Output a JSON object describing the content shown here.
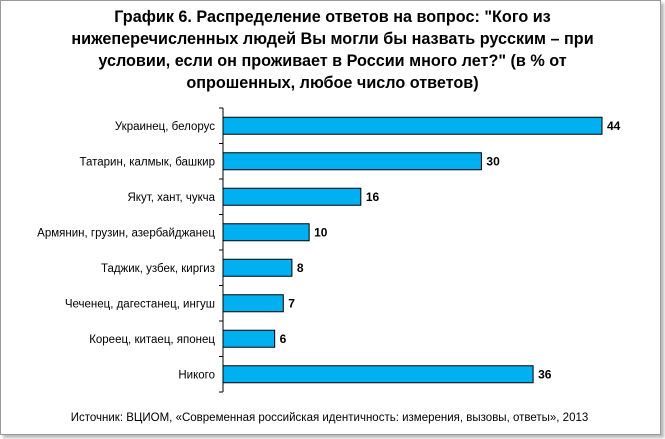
{
  "chart_data": {
    "type": "bar",
    "orientation": "horizontal",
    "title": "График 6. Распределение ответов на вопрос: \"Кого из нижеперечисленных людей Вы могли бы назвать русским – при условии, если он проживает в России много лет?\" (в %  от опрошенных, любое число ответов)",
    "categories": [
      "Украинец, белорус",
      "Татарин, калмык, башкир",
      "Якут, хант, чукча",
      "Армянин, грузин, азербайджанец",
      "Таджик, узбек, киргиз",
      "Чеченец, дагестанец, ингуш",
      "Кореец, китаец, японец",
      "Никого"
    ],
    "values": [
      44,
      30,
      16,
      10,
      8,
      7,
      6,
      36
    ],
    "xlim": [
      0,
      44
    ],
    "bar_color": "#00B0F0",
    "grid": false,
    "legend": "none",
    "data_labels": true
  },
  "source": "Источник: ВЦИОМ, «Современная российская идентичность: измерения, вызовы, ответы», 2013"
}
